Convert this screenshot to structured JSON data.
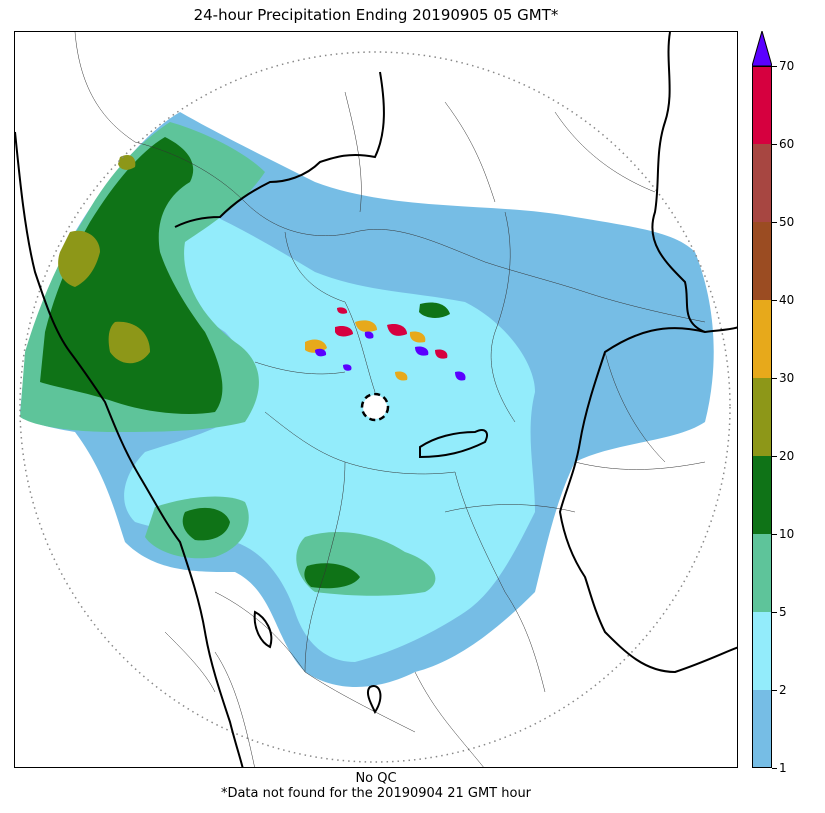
{
  "title": "24-hour Precipitation Ending 20190905 05 GMT*",
  "footer": {
    "qc_note": "No QC",
    "missing_note": "*Data not found for the 20190904 21 GMT hour"
  },
  "colorbar": {
    "levels": [
      {
        "value": "1",
        "color": "#76bde5"
      },
      {
        "value": "2",
        "color": "#93ecfb"
      },
      {
        "value": "5",
        "color": "#5ec49a"
      },
      {
        "value": "10",
        "color": "#0f7317"
      },
      {
        "value": "20",
        "color": "#8d9718"
      },
      {
        "value": "30",
        "color": "#e7a91b"
      },
      {
        "value": "40",
        "color": "#9b4c22"
      },
      {
        "value": "50",
        "color": "#a74641"
      },
      {
        "value": "60",
        "color": "#d6003f"
      },
      {
        "value": "70",
        "color": "#5a00ff"
      }
    ],
    "extend": "max",
    "extend_color": "#5a00ff"
  },
  "map": {
    "range_ring": "dotted",
    "radar_site_marker": "dashed-circle"
  }
}
